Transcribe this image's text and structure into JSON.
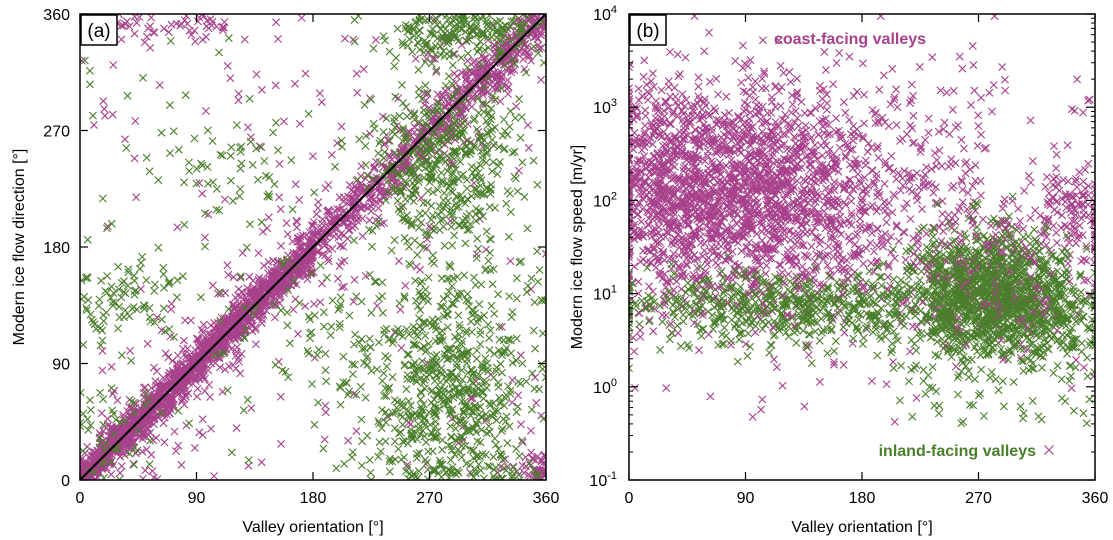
{
  "colors": {
    "coast": "#a8418c",
    "inland": "#4a7f2b",
    "axis": "#000000",
    "fit_line": "#000000"
  },
  "chart_data": [
    {
      "type": "scatter",
      "panel_label": "(a)",
      "xlabel": "Valley orientation [°]",
      "ylabel": "Modern ice flow direction [°]",
      "xlim": [
        0,
        360
      ],
      "ylim": [
        0,
        360
      ],
      "xticks": [
        0,
        90,
        180,
        270,
        360
      ],
      "yticks": [
        0,
        90,
        180,
        270,
        360
      ],
      "x_tick_labels": [
        "0",
        "90",
        "180",
        "270",
        "360"
      ],
      "y_tick_labels": [
        "0",
        "90",
        "180",
        "270",
        "360"
      ],
      "marker": "x",
      "reference_line": {
        "x": [
          0,
          360
        ],
        "y": [
          0,
          360
        ]
      },
      "series": [
        {
          "color": "#a8418c",
          "clusters": [
            {
              "shape": "diagonal",
              "count": 1500,
              "x_range": [
                0,
                180
              ],
              "spread": 8
            },
            {
              "shape": "diagonal",
              "count": 700,
              "x_range": [
                180,
                360
              ],
              "spread": 10
            },
            {
              "shape": "diagonal",
              "count": 260,
              "x_range": [
                0,
                360
              ],
              "spread": 35
            },
            {
              "shape": "uniform",
              "count": 150,
              "x_range": [
                0,
                360
              ],
              "y_range": [
                0,
                360
              ]
            },
            {
              "shape": "cluster",
              "count": 60,
              "cx": 60,
              "cy": 350,
              "sx": 35,
              "sy": 8
            },
            {
              "shape": "cluster",
              "count": 25,
              "cx": 350,
              "cy": 8,
              "sx": 8,
              "sy": 6
            }
          ]
        },
        {
          "color": "#4a7f2b",
          "clusters": [
            {
              "shape": "cluster",
              "count": 650,
              "cx": 285,
              "cy": 70,
              "sx": 32,
              "sy": 45
            },
            {
              "shape": "cluster",
              "count": 450,
              "cx": 280,
              "cy": 245,
              "sx": 28,
              "sy": 35
            },
            {
              "shape": "cluster",
              "count": 200,
              "cx": 300,
              "cy": 350,
              "sx": 30,
              "sy": 12
            },
            {
              "shape": "cluster",
              "count": 90,
              "cx": 30,
              "cy": 140,
              "sx": 28,
              "sy": 15
            },
            {
              "shape": "cluster",
              "count": 50,
              "cx": 120,
              "cy": 240,
              "sx": 30,
              "sy": 20
            },
            {
              "shape": "cluster",
              "count": 90,
              "cx": 200,
              "cy": 120,
              "sx": 50,
              "sy": 25
            },
            {
              "shape": "cluster",
              "count": 45,
              "cx": 20,
              "cy": 40,
              "sx": 15,
              "sy": 25
            },
            {
              "shape": "uniform",
              "count": 80,
              "x_range": [
                0,
                360
              ],
              "y_range": [
                0,
                360
              ]
            }
          ]
        }
      ]
    },
    {
      "type": "scatter",
      "panel_label": "(b)",
      "xlabel": "Valley orientation [°]",
      "ylabel": "Modern ice flow speed [m/yr]",
      "xlim": [
        0,
        360
      ],
      "ylim": [
        0.1,
        10000
      ],
      "yscale": "log",
      "xticks": [
        0,
        90,
        180,
        270,
        360
      ],
      "x_tick_labels": [
        "0",
        "90",
        "180",
        "270",
        "360"
      ],
      "yticks": [
        0.1,
        1,
        10,
        100,
        1000,
        10000
      ],
      "y_tick_mantissa": "10",
      "y_tick_exponents": [
        "-1",
        "0",
        "1",
        "2",
        "3",
        "4"
      ],
      "marker": "x",
      "series": [
        {
          "name": "coast-facing valleys",
          "color": "#a8418c",
          "clusters": [
            {
              "shape": "logcluster",
              "count": 1700,
              "cx": 95,
              "cy": 120,
              "sx": 50,
              "sdec": 0.55
            },
            {
              "shape": "logcluster",
              "count": 350,
              "cx": 25,
              "cy": 150,
              "sx": 20,
              "sdec": 0.6
            },
            {
              "shape": "logcluster",
              "count": 200,
              "cx": 215,
              "cy": 150,
              "sx": 45,
              "sdec": 0.6
            },
            {
              "shape": "logcluster",
              "count": 120,
              "cx": 340,
              "cy": 80,
              "sx": 15,
              "sdec": 0.3
            },
            {
              "shape": "logcluster",
              "count": 200,
              "cx": 280,
              "cy": 15,
              "sx": 40,
              "sdec": 0.35
            },
            {
              "shape": "loguniform",
              "count": 150,
              "x_range": [
                0,
                360
              ],
              "y_range": [
                0.4,
                3000
              ]
            }
          ]
        },
        {
          "name": "inland-facing valleys",
          "color": "#4a7f2b",
          "clusters": [
            {
              "shape": "logcluster",
              "count": 1200,
              "cx": 275,
              "cy": 10,
              "sx": 30,
              "sdec": 0.32
            },
            {
              "shape": "logcluster",
              "count": 600,
              "cx": 120,
              "cy": 7,
              "sx": 70,
              "sdec": 0.2
            },
            {
              "shape": "logcluster",
              "count": 200,
              "cx": 325,
              "cy": 6,
              "sx": 20,
              "sdec": 0.25
            },
            {
              "shape": "loguniform",
              "count": 60,
              "x_range": [
                200,
                360
              ],
              "y_range": [
                0.4,
                3
              ]
            }
          ]
        }
      ],
      "annotations": {
        "coast": "coast-facing valleys",
        "inland": "inland-facing valleys"
      }
    }
  ]
}
